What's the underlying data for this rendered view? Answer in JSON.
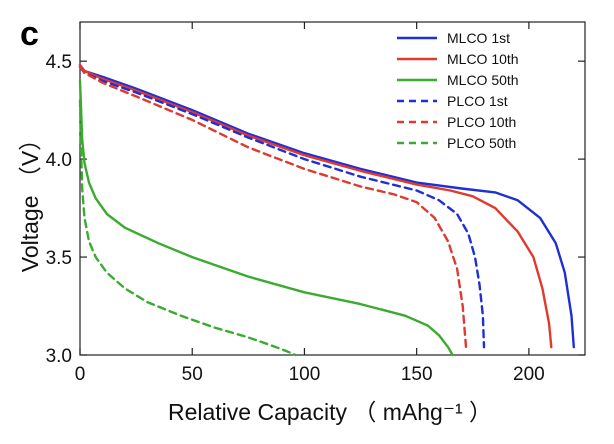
{
  "chart_data": {
    "type": "line",
    "panel_label": "c",
    "xlabel": "Relative Capacity （ mAhg⁻¹ ）",
    "ylabel": "Voltage （V）",
    "xlim": [
      0,
      225
    ],
    "ylim": [
      3.0,
      4.7
    ],
    "xticks": [
      0,
      50,
      100,
      150,
      200
    ],
    "yticks": [
      3.0,
      3.5,
      4.0,
      4.5
    ],
    "ytick_labels": [
      "3.0",
      "3.5",
      "4.0",
      "4.5"
    ],
    "grid": false,
    "legend_position": "top-right",
    "colors": {
      "blue": "#1f2fd6",
      "red": "#e03a2f",
      "green": "#3aab2f"
    },
    "series": [
      {
        "name": "MLCO 1st",
        "color": "blue",
        "dash": false,
        "x": [
          0,
          2,
          10,
          25,
          50,
          75,
          100,
          125,
          150,
          170,
          185,
          195,
          205,
          212,
          216,
          219,
          220
        ],
        "y": [
          4.48,
          4.45,
          4.42,
          4.36,
          4.25,
          4.13,
          4.03,
          3.95,
          3.88,
          3.85,
          3.83,
          3.79,
          3.7,
          3.57,
          3.42,
          3.2,
          3.04
        ]
      },
      {
        "name": "MLCO 10th",
        "color": "red",
        "dash": false,
        "x": [
          0,
          2,
          10,
          25,
          50,
          75,
          100,
          125,
          150,
          165,
          175,
          185,
          195,
          202,
          206,
          209,
          210
        ],
        "y": [
          4.48,
          4.45,
          4.41,
          4.35,
          4.24,
          4.12,
          4.02,
          3.94,
          3.87,
          3.84,
          3.81,
          3.75,
          3.63,
          3.5,
          3.34,
          3.16,
          3.04
        ]
      },
      {
        "name": "MLCO 50th",
        "color": "green",
        "dash": false,
        "x": [
          0,
          0.5,
          1,
          2,
          4,
          7,
          12,
          20,
          35,
          50,
          75,
          100,
          125,
          145,
          155,
          160,
          164,
          166
        ],
        "y": [
          4.4,
          4.25,
          4.1,
          3.98,
          3.88,
          3.8,
          3.72,
          3.65,
          3.57,
          3.5,
          3.4,
          3.32,
          3.26,
          3.2,
          3.15,
          3.1,
          3.04,
          3.0
        ]
      },
      {
        "name": "PLCO 1st",
        "color": "blue",
        "dash": true,
        "x": [
          0,
          2,
          10,
          25,
          50,
          75,
          100,
          125,
          150,
          160,
          168,
          173,
          176,
          178,
          179.5,
          180
        ],
        "y": [
          4.47,
          4.44,
          4.4,
          4.34,
          4.23,
          4.11,
          4.0,
          3.91,
          3.84,
          3.79,
          3.72,
          3.62,
          3.5,
          3.36,
          3.2,
          3.04
        ]
      },
      {
        "name": "PLCO 10th",
        "color": "red",
        "dash": true,
        "x": [
          0,
          2,
          10,
          25,
          50,
          75,
          100,
          125,
          140,
          150,
          158,
          164,
          168,
          170.5,
          172
        ],
        "y": [
          4.47,
          4.44,
          4.39,
          4.32,
          4.2,
          4.06,
          3.95,
          3.86,
          3.82,
          3.78,
          3.7,
          3.58,
          3.44,
          3.25,
          3.04
        ]
      },
      {
        "name": "PLCO 50th",
        "color": "green",
        "dash": true,
        "x": [
          0,
          0.5,
          1,
          2,
          4,
          7,
          12,
          20,
          30,
          45,
          60,
          75,
          85,
          92,
          96
        ],
        "y": [
          4.3,
          4.05,
          3.85,
          3.7,
          3.58,
          3.5,
          3.42,
          3.34,
          3.27,
          3.2,
          3.14,
          3.09,
          3.05,
          3.02,
          3.0
        ]
      }
    ]
  }
}
